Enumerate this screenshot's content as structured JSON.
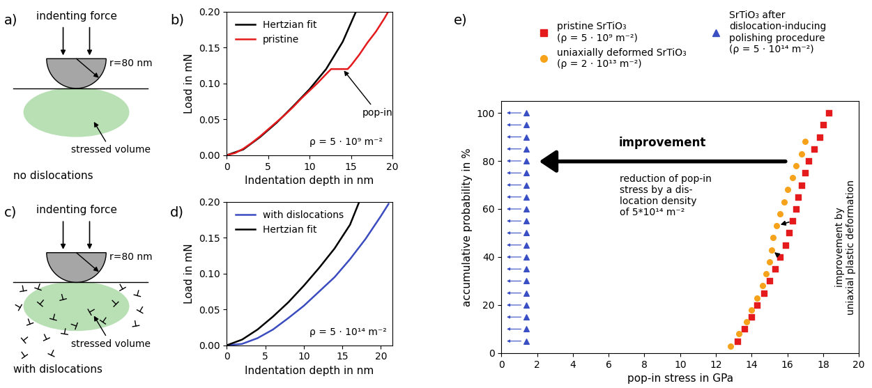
{
  "diagrams": [
    {
      "panel_label": "a)",
      "force_label": "indenting force",
      "radius_label": "r=80 nm",
      "volume_label": "stressed volume",
      "caption": "no dislocations"
    },
    {
      "panel_label": "c)",
      "force_label": "indenting force",
      "radius_label": "r=80 nm",
      "volume_label": "stressed volume",
      "caption": "with dislocations"
    }
  ],
  "chart_data": [
    {
      "panel_label": "b)",
      "type": "line",
      "x_label": "Indentation depth in nm",
      "y_label": "Load in mN",
      "xlim": [
        0,
        20
      ],
      "xticks": [
        0,
        5,
        10,
        15,
        20
      ],
      "ylim": [
        0,
        0.2
      ],
      "yticks": [
        {
          "value": 0,
          "label": "0.00"
        },
        0.05,
        {
          "value": 0.1,
          "label": "0.10"
        },
        0.15,
        {
          "value": 0.2,
          "label": "0.20"
        }
      ],
      "legend": "upper left",
      "annotation": "pop-in",
      "text": "ρ = 5 · 10⁹ m⁻²",
      "series": [
        {
          "name": "Hertzian fit",
          "color": "#000000",
          "line_style": "solid",
          "x": [
            0,
            2,
            4,
            6,
            8,
            10,
            12,
            14,
            15.6
          ],
          "values": [
            0,
            0.008,
            0.025,
            0.045,
            0.068,
            0.092,
            0.12,
            0.158,
            0.2
          ]
        },
        {
          "name": "pristine",
          "color": "#e41a1c",
          "line_style": "solid",
          "x": [
            0,
            1,
            2,
            3,
            4,
            5,
            6,
            7,
            8,
            9,
            10,
            11,
            12,
            12.6,
            14,
            14.6,
            15,
            16,
            17,
            18,
            19,
            19.5
          ],
          "values": [
            0,
            0.003,
            0.009,
            0.017,
            0.026,
            0.036,
            0.046,
            0.056,
            0.067,
            0.079,
            0.09,
            0.101,
            0.113,
            0.12,
            0.12,
            0.12,
            0.125,
            0.14,
            0.157,
            0.172,
            0.19,
            0.2
          ]
        }
      ]
    },
    {
      "panel_label": "d)",
      "type": "line",
      "x_label": "Indentation depth in nm",
      "y_label": "Load in mN",
      "xlim": [
        0,
        21.5
      ],
      "xticks": [
        0,
        5,
        10,
        15,
        20
      ],
      "ylim": [
        0,
        0.2
      ],
      "yticks": [
        {
          "value": 0,
          "label": "0.00"
        },
        0.05,
        {
          "value": 0.1,
          "label": "0.10"
        },
        0.15,
        {
          "value": 0.2,
          "label": "0.20"
        }
      ],
      "legend": "upper left",
      "text": "ρ = 5 · 10¹⁴ m⁻²",
      "series": [
        {
          "name": "with dislocations",
          "color": "#3b4cc0",
          "line_style": "solid",
          "x": [
            0,
            2,
            4,
            6,
            8,
            10,
            12,
            14,
            16,
            18,
            20,
            21
          ],
          "values": [
            0,
            0.002,
            0.01,
            0.022,
            0.038,
            0.055,
            0.075,
            0.095,
            0.12,
            0.148,
            0.18,
            0.197
          ]
        },
        {
          "name": "Hertzian fit",
          "color": "#000000",
          "line_style": "solid",
          "x": [
            0,
            2,
            4,
            6,
            8,
            10,
            12,
            14,
            16,
            17.2
          ],
          "values": [
            0,
            0.008,
            0.022,
            0.04,
            0.06,
            0.083,
            0.108,
            0.135,
            0.168,
            0.2
          ]
        }
      ]
    },
    {
      "panel_label": "e)",
      "type": "scatter",
      "x_label": "pop-in stress in GPa",
      "y_label": "accumulative probability in %",
      "xlim": [
        0,
        20
      ],
      "xticks": [
        0,
        2,
        4,
        6,
        8,
        10,
        12,
        14,
        16,
        18,
        20
      ],
      "ylim": [
        0,
        105
      ],
      "yticks": [
        0,
        20,
        40,
        60,
        80,
        100
      ],
      "legend": "upper center",
      "arrow_label": "improvement",
      "note": "reduction of pop-in\nstress by a dis-\nlocation density\nof 5*10¹⁴ m⁻²",
      "side_note": "improvement by\nuniaxial plastic deformation",
      "series": [
        {
          "name": "pristine SrTiO₃\n(ρ = 5 · 10⁹ m⁻²)",
          "color": "#e41a1c",
          "marker": "square",
          "x": [
            13.2,
            13.6,
            14.0,
            14.3,
            14.7,
            15.0,
            15.3,
            15.6,
            15.9,
            16.1,
            16.3,
            16.5,
            16.6,
            16.8,
            17.0,
            17.2,
            17.5,
            17.8,
            18.0,
            18.3
          ],
          "values": [
            5,
            10,
            15,
            20,
            25,
            30,
            35,
            40,
            45,
            50,
            55,
            60,
            65,
            70,
            75,
            80,
            85,
            90,
            95,
            100
          ]
        },
        {
          "name": "uniaxially deformed SrTiO₃\n(ρ = 2 · 10¹³ m⁻²)",
          "color": "#f7a21b",
          "marker": "circle",
          "x": [
            12.8,
            13.3,
            13.7,
            14.0,
            14.3,
            14.6,
            14.8,
            15.0,
            15.1,
            15.2,
            15.4,
            15.6,
            15.8,
            16.0,
            16.3,
            16.5,
            16.8,
            17.0
          ],
          "values": [
            3,
            8,
            13,
            18,
            23,
            28,
            33,
            38,
            43,
            48,
            53,
            58,
            63,
            68,
            73,
            78,
            83,
            88
          ]
        },
        {
          "name": "SrTiO₃ after\ndislocation-inducing\npolishing procedure\n(ρ = 5 · 10¹⁴ m⁻²)",
          "color": "#3a4fc4",
          "marker": "triangle",
          "x": [
            1.4,
            1.4,
            1.4,
            1.4,
            1.4,
            1.4,
            1.4,
            1.4,
            1.4,
            1.4,
            1.4,
            1.4,
            1.4,
            1.4,
            1.4,
            1.4,
            1.4,
            1.4,
            1.4,
            1.4
          ],
          "values": [
            5,
            10,
            15,
            20,
            25,
            30,
            35,
            40,
            45,
            50,
            55,
            60,
            65,
            70,
            75,
            80,
            85,
            90,
            95,
            100
          ]
        }
      ]
    }
  ]
}
